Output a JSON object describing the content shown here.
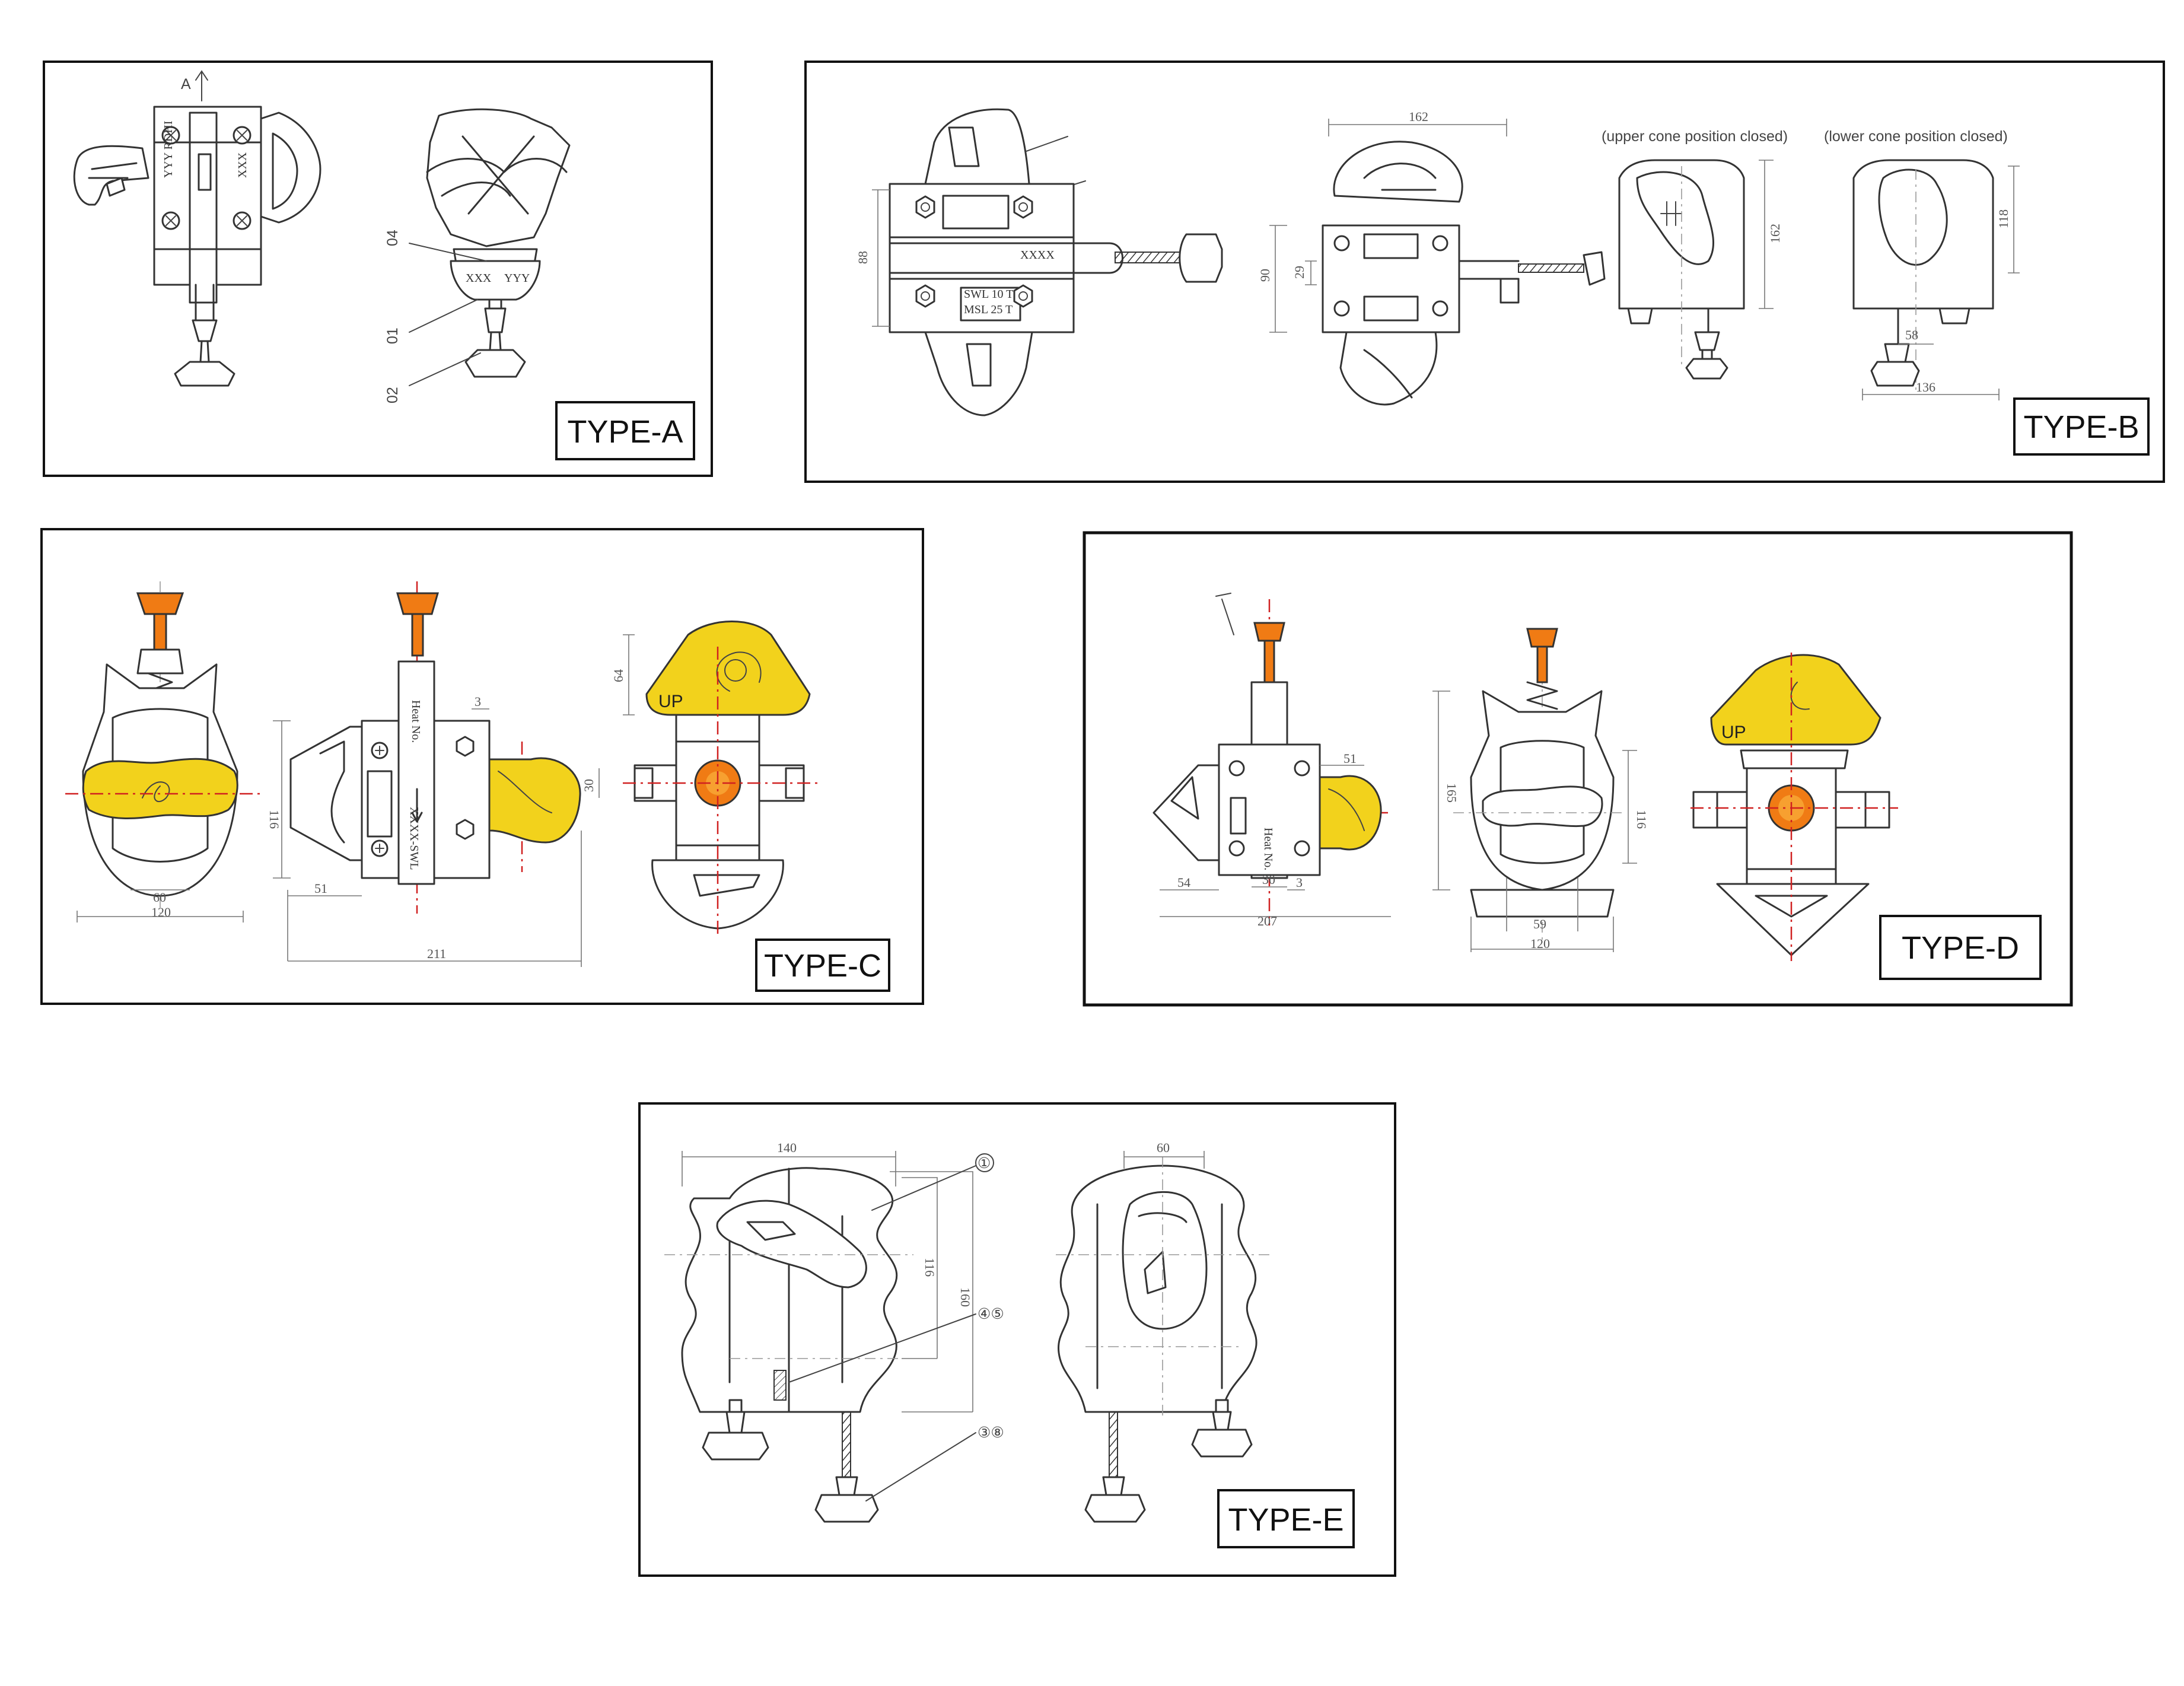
{
  "panels": {
    "a": {
      "label": "TYPE-A",
      "section_marks": [
        "A",
        "A"
      ],
      "callouts": [
        "04",
        "01",
        "02"
      ]
    },
    "b": {
      "label": "TYPE-B",
      "captions": [
        "(upper cone position closed)",
        "(lower cone position closed)"
      ],
      "plate_lines": [
        "SWL 10 T",
        "MSL 25 T"
      ],
      "dims": [
        "88",
        "162",
        "90",
        "29",
        "162",
        "118",
        "58",
        "136"
      ]
    },
    "c": {
      "label": "TYPE-C",
      "up_text": "UP",
      "dims": [
        "3",
        "116",
        "60",
        "120",
        "51",
        "211",
        "64",
        "30"
      ]
    },
    "d": {
      "label": "TYPE-D",
      "up_text": "UP",
      "dims": [
        "51",
        "54",
        "30",
        "3",
        "207",
        "165",
        "116",
        "59",
        "120"
      ]
    },
    "e": {
      "label": "TYPE-E",
      "dims": [
        "140",
        "116",
        "160",
        "60"
      ],
      "callouts": [
        "①",
        "④⑤",
        "③⑧"
      ]
    }
  },
  "colors": {
    "cone_yellow": "#f2d21c",
    "handle_orange": "#f07b14",
    "centerline_red": "#d02020"
  }
}
